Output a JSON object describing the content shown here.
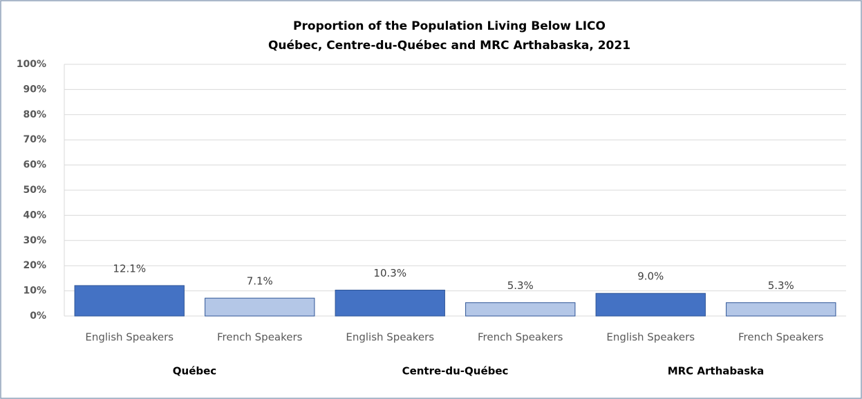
{
  "chart_data": {
    "type": "bar",
    "title": "Proportion of the Population  Living Below LICO",
    "subtitle": "Québec, Centre-du-Québec and MRC Arthabaska,  2021",
    "categories": [
      "English Speakers",
      "French Speakers",
      "English Speakers",
      "French Speakers",
      "English Speakers",
      "French Speakers"
    ],
    "groups": [
      "Québec",
      "Centre-du-Québec",
      "MRC Arthabaska"
    ],
    "values": [
      12.1,
      7.1,
      10.3,
      5.3,
      9.0,
      5.3
    ],
    "value_labels": [
      "12.1%",
      "7.1%",
      "10.3%",
      "5.3%",
      "9.0%",
      "5.3%"
    ],
    "colors": [
      "#4472c4",
      "#b4c7e7",
      "#4472c4",
      "#b4c7e7",
      "#4472c4",
      "#b4c7e7"
    ],
    "ylim": [
      0,
      100
    ],
    "yticks": [
      {
        "value": 0,
        "label": "0%"
      },
      {
        "value": 10,
        "label": "10%"
      },
      {
        "value": 20,
        "label": "20%"
      },
      {
        "value": 30,
        "label": "30%"
      },
      {
        "value": 40,
        "label": "40%"
      },
      {
        "value": 50,
        "label": "50%"
      },
      {
        "value": 60,
        "label": "60%"
      },
      {
        "value": 70,
        "label": "70%"
      },
      {
        "value": 80,
        "label": "80%"
      },
      {
        "value": 90,
        "label": "90%"
      },
      {
        "value": 100,
        "label": "100%"
      }
    ],
    "grid": true
  }
}
